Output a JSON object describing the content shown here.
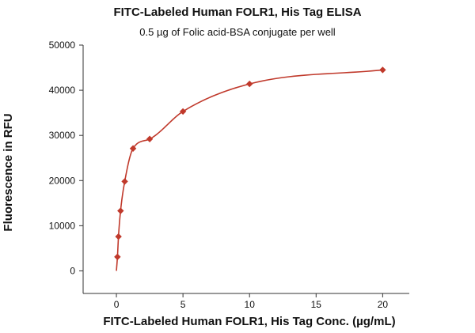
{
  "chart_data": {
    "type": "scatter",
    "title": "FITC-Labeled Human FOLR1, His Tag ELISA",
    "subtitle": "0.5 µg of Folic acid-BSA conjugate per well",
    "xlabel": "FITC-Labeled Human FOLR1, His Tag Conc. (µg/mL)",
    "ylabel": "Fluorescence in RFU",
    "xlim": [
      -2.5,
      22
    ],
    "ylim": [
      -5000,
      50000
    ],
    "x_ticks": [
      0,
      5,
      10,
      15,
      20
    ],
    "x_tick_labels": [
      "0",
      "5",
      "10",
      "15",
      "20"
    ],
    "y_ticks": [
      0,
      10000,
      20000,
      30000,
      40000,
      50000
    ],
    "y_tick_labels": [
      "0",
      "10000",
      "20000",
      "30000",
      "40000",
      "50000"
    ],
    "grid": false,
    "legend": "none",
    "series": [
      {
        "marker": "diamond",
        "color": "#c0392b",
        "x": [
          0.078,
          0.156,
          0.313,
          0.625,
          1.25,
          2.5,
          5,
          10,
          20
        ],
        "y": [
          3100,
          7600,
          13300,
          19800,
          27100,
          29200,
          35300,
          41400,
          44500
        ],
        "fit": "saturation-binding curve",
        "fit_color": "#c0392b"
      }
    ]
  }
}
